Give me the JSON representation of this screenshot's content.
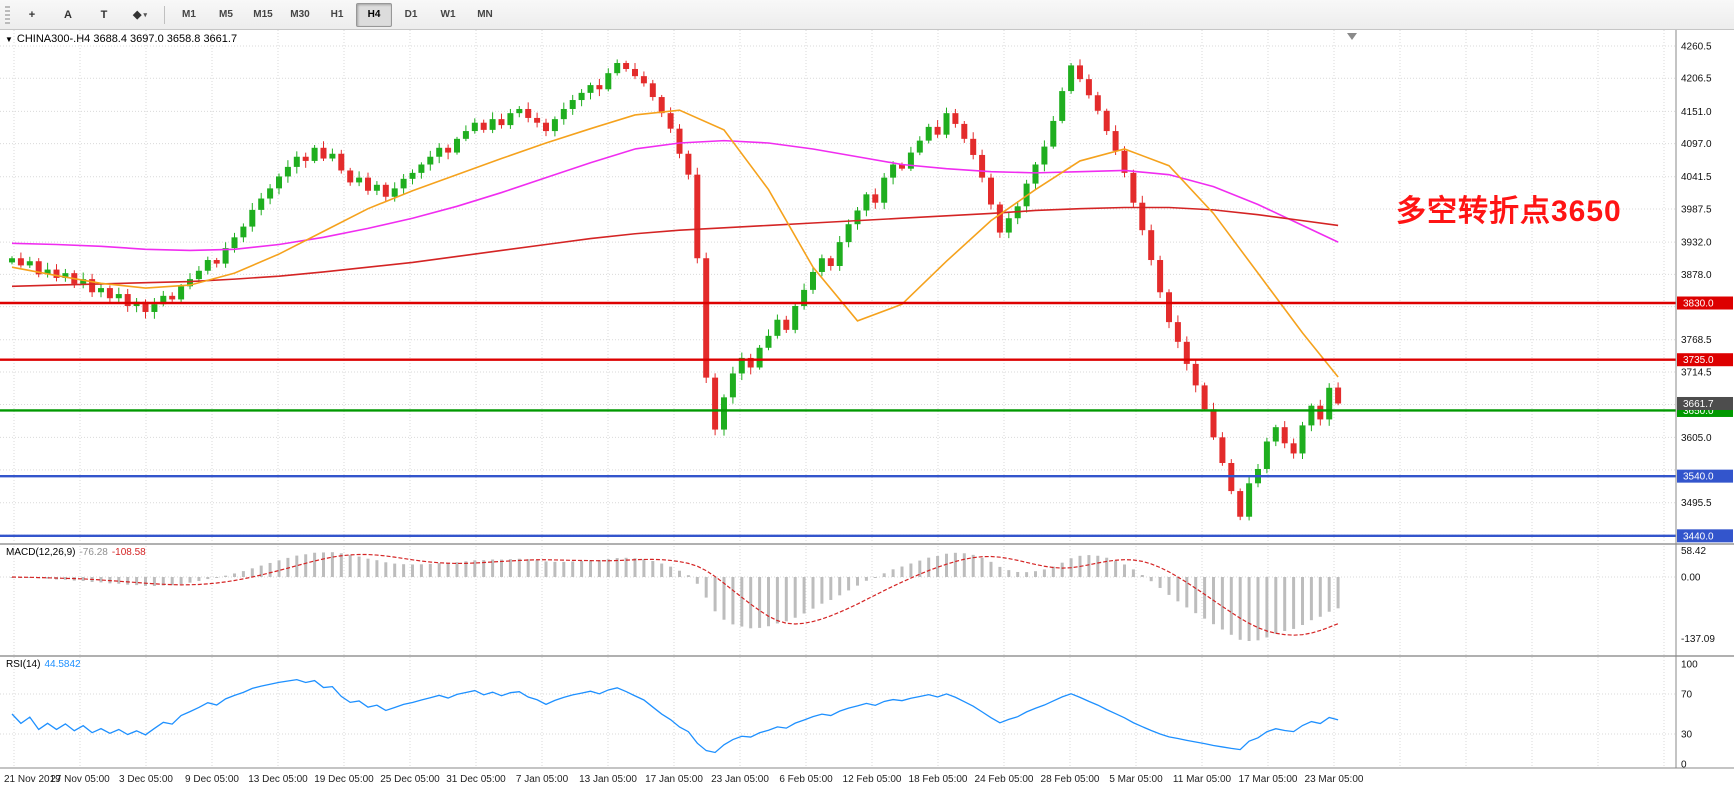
{
  "toolbar": {
    "left_buttons": [
      {
        "name": "crosshair",
        "glyph": "+"
      },
      {
        "name": "text-annotation",
        "glyph": "A"
      },
      {
        "name": "template",
        "glyph": "T"
      },
      {
        "name": "draw-tools",
        "glyph": "◆",
        "caret": "▾"
      }
    ],
    "timeframes": [
      "M1",
      "M5",
      "M15",
      "M30",
      "H1",
      "H4",
      "D1",
      "W1",
      "MN"
    ],
    "active_timeframe": "H4"
  },
  "chart_header": {
    "collapse_glyph": "▼",
    "title": "CHINA300-.H4 3688.4 3697.0 3658.8 3661.7"
  },
  "annotation": {
    "text": "多空转折点3650",
    "color": "#ff1414"
  },
  "indicators": {
    "macd": {
      "name": "MACD(12,26,9)",
      "value": "-76.28",
      "signal": "-108.58"
    },
    "rsi": {
      "name": "RSI(14)",
      "value": "44.5842"
    }
  },
  "chart_data": {
    "type": "candlestick",
    "symbol": "CHINA300-",
    "timeframe": "H4",
    "ohlc_current": {
      "open": 3688.4,
      "high": 3697.0,
      "low": 3658.8,
      "close": 3661.7
    },
    "current_price_label": "3661.7",
    "first_open": 3898,
    "closes": [
      3905,
      3893,
      3900,
      3878,
      3886,
      3872,
      3880,
      3862,
      3870,
      3848,
      3855,
      3838,
      3845,
      3825,
      3832,
      3815,
      3828,
      3842,
      3836,
      3858,
      3870,
      3884,
      3902,
      3896,
      3922,
      3940,
      3958,
      3986,
      4005,
      4022,
      4042,
      4058,
      4075,
      4068,
      4090,
      4072,
      4080,
      4052,
      4032,
      4040,
      4018,
      4028,
      4008,
      4022,
      4038,
      4048,
      4062,
      4075,
      4090,
      4082,
      4105,
      4118,
      4132,
      4120,
      4138,
      4128,
      4148,
      4155,
      4140,
      4132,
      4118,
      4138,
      4155,
      4170,
      4182,
      4195,
      4188,
      4215,
      4232,
      4222,
      4210,
      4198,
      4175,
      4148,
      4122,
      4080,
      4045,
      3905,
      3705,
      3618,
      3672,
      3712,
      3738,
      3722,
      3755,
      3775,
      3802,
      3785,
      3825,
      3852,
      3882,
      3905,
      3892,
      3932,
      3962,
      3985,
      4012,
      3998,
      4040,
      4062,
      4055,
      4082,
      4102,
      4125,
      4112,
      4148,
      4130,
      4105,
      4078,
      4040,
      3995,
      3948,
      3972,
      3992,
      4030,
      4062,
      4092,
      4135,
      4185,
      4228,
      4205,
      4178,
      4152,
      4118,
      4085,
      4048,
      3998,
      3952,
      3902,
      3848,
      3798,
      3765,
      3728,
      3692,
      3652,
      3605,
      3562,
      3515,
      3472,
      3528,
      3552,
      3598,
      3622,
      3595,
      3578,
      3625,
      3658,
      3635,
      3688,
      3661.7
    ],
    "ma_orange": [
      3890,
      3876,
      3863,
      3855,
      3860,
      3880,
      3912,
      3950,
      3988,
      4018,
      4045,
      4072,
      4098,
      4122,
      4145,
      4153,
      4120,
      4020,
      3890,
      3800,
      3828,
      3900,
      3968,
      4020,
      4068,
      4088,
      4060,
      3980,
      3880,
      3780,
      3706
    ],
    "ma_magenta": [
      3930,
      3928,
      3925,
      3920,
      3918,
      3920,
      3928,
      3940,
      3955,
      3972,
      3992,
      4015,
      4040,
      4065,
      4088,
      4098,
      4102,
      4098,
      4088,
      4075,
      4062,
      4055,
      4050,
      4048,
      4050,
      4052,
      4045,
      4025,
      3995,
      3960,
      3932
    ],
    "ma_red": [
      3858,
      3860,
      3862,
      3864,
      3866,
      3870,
      3875,
      3882,
      3890,
      3898,
      3908,
      3918,
      3928,
      3938,
      3946,
      3952,
      3956,
      3960,
      3964,
      3968,
      3972,
      3976,
      3980,
      3985,
      3988,
      3990,
      3990,
      3986,
      3978,
      3968,
      3960
    ],
    "hlines": [
      {
        "price": 3830.0,
        "label": "3830.0",
        "color": "#dd0000"
      },
      {
        "price": 3735.0,
        "label": "3735.0",
        "color": "#dd0000"
      },
      {
        "price": 3650.0,
        "label": "3650.0",
        "color": "#009900"
      },
      {
        "price": 3540.0,
        "label": "3540.0",
        "color": "#3355cc"
      },
      {
        "price": 3440.0,
        "label": "3440.0",
        "color": "#3355cc"
      }
    ],
    "price_gridlines": [
      4260.5,
      4206.5,
      4151.0,
      4097.0,
      4041.5,
      3987.5,
      3932.0,
      3878.0,
      3824.0,
      3768.5,
      3714.5,
      3660.0,
      3605.0,
      3550.5,
      3495.5,
      3441.0
    ],
    "price_ticks_visible": [
      "4260.5",
      "4206.5",
      "4151.0",
      "4097.0",
      "4041.5",
      "3987.5",
      "3932.0",
      "3878.0",
      "3768.5",
      "3714.5",
      "3605.0",
      "3495.5"
    ],
    "x_labels": [
      "21 Nov 2019",
      "27 Nov 05:00",
      "3 Dec 05:00",
      "9 Dec 05:00",
      "13 Dec 05:00",
      "19 Dec 05:00",
      "25 Dec 05:00",
      "31 Dec 05:00",
      "7 Jan 05:00",
      "13 Jan 05:00",
      "17 Jan 05:00",
      "23 Jan 05:00",
      "6 Feb 05:00",
      "12 Feb 05:00",
      "18 Feb 05:00",
      "24 Feb 05:00",
      "28 Feb 05:00",
      "5 Mar 05:00",
      "11 Mar 05:00",
      "17 Mar 05:00",
      "23 Mar 05:00"
    ],
    "macd": {
      "params": "12,26,9",
      "value": -76.28,
      "signal": -108.58,
      "y_ticks": [
        "58.42",
        "0.00",
        "-137.09"
      ]
    },
    "rsi": {
      "period": 14,
      "value": 44.5842,
      "levels": [
        70,
        30
      ],
      "y_ticks": [
        "100",
        "70",
        "30",
        "0"
      ]
    },
    "colors": {
      "up": "#1fae1f",
      "down": "#e32b2b",
      "ma_orange": "#f5a21d",
      "ma_magenta": "#f02df0",
      "ma_red": "#d42424",
      "macd_hist": "#bdbdbd",
      "macd_signal": "#d42424",
      "rsi": "#1e90ff",
      "current_badge": "#4d4d4d"
    }
  }
}
